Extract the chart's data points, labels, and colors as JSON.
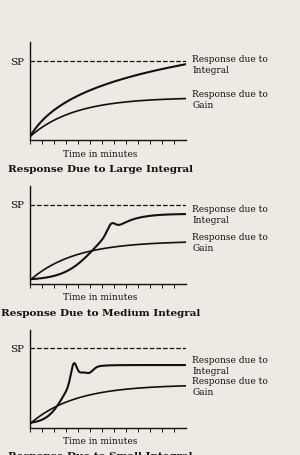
{
  "panels": [
    {
      "title1": "Time in minutes",
      "title2": "Response Due to Large Integral",
      "integral_shape": "large"
    },
    {
      "title1": "Time in minutes",
      "title2": "Response Due to Medium Integral",
      "integral_shape": "medium"
    },
    {
      "title1": "Time in minutes",
      "title2": "Response Due to Small Integral",
      "integral_shape": "small"
    }
  ],
  "sp_label": "SP",
  "integral_label": "Response due to\nIntegral",
  "gain_label": "Response due to\nGain",
  "sp_level": 1.0,
  "bg_color": "#ede9e3",
  "line_color": "#111111",
  "fontsize_small": 6.5,
  "fontsize_title2": 7.5,
  "fontsize_sp": 7.5,
  "n_ticks": 13
}
